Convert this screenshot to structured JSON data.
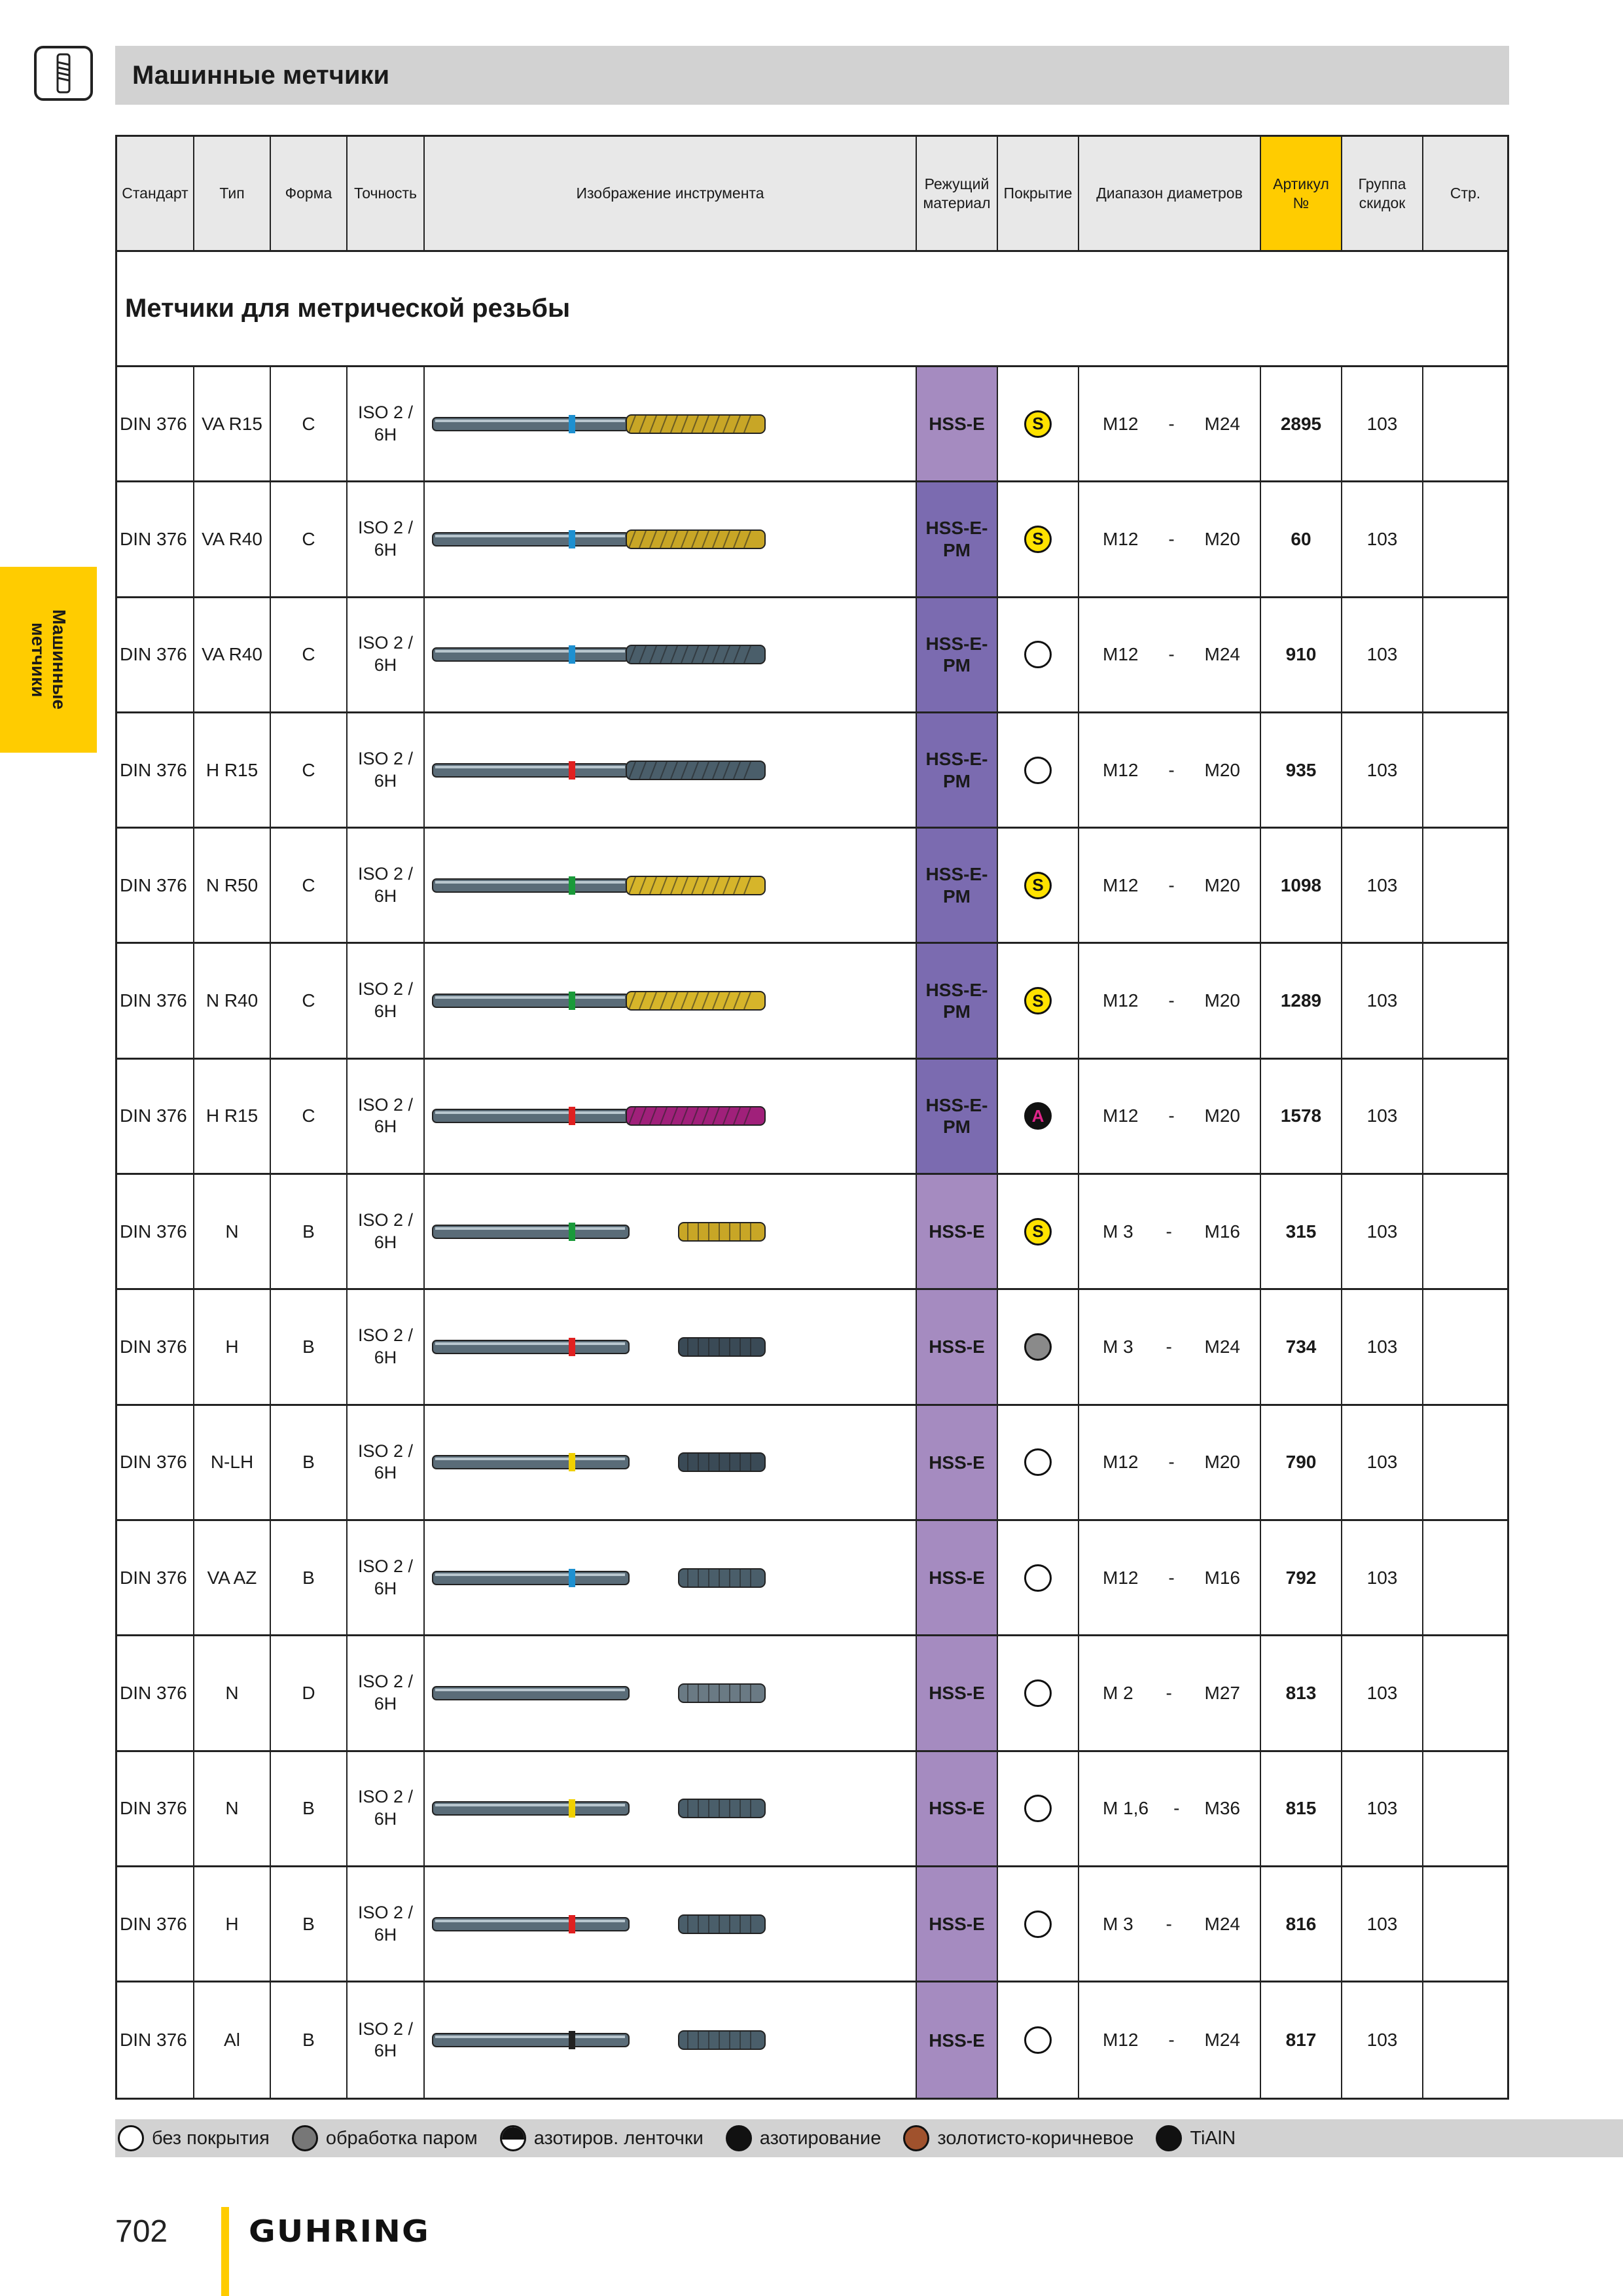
{
  "header": {
    "title": "Машинные метчики"
  },
  "side_tab": {
    "label": "Машинные\nметчики"
  },
  "table": {
    "headers": {
      "standard": "Стандарт",
      "type": "Тип",
      "form": "Форма",
      "tolerance": "Точность",
      "image": "Изображение инструмента",
      "material": "Режущий материал",
      "coating": "Покрытие",
      "range": "Диапазон диаметров",
      "article": "Артикул №",
      "discount": "Группа скидок",
      "page": "Стр."
    },
    "section_title": "Метчики для метрической резьбы",
    "rows": [
      {
        "standard": "DIN 376",
        "type": "VA R15",
        "form": "C",
        "tolerance": "ISO 2 / 6H",
        "material": "HSS-E",
        "coating": "S",
        "coating_kind": "s",
        "range_from": "M12",
        "dash": "-",
        "range_to": "M24",
        "article": "2895",
        "discount": "103",
        "page": "",
        "ring": "#1e90d0",
        "body": "#c8a626",
        "flute": "spiral"
      },
      {
        "standard": "DIN 376",
        "type": "VA R40",
        "form": "C",
        "tolerance": "ISO 2 / 6H",
        "material": "HSS-E-PM",
        "coating": "S",
        "coating_kind": "s",
        "range_from": "M12",
        "dash": "-",
        "range_to": "M20",
        "article": "60",
        "discount": "103",
        "page": "",
        "ring": "#1e90d0",
        "body": "#c8a626",
        "flute": "spiral"
      },
      {
        "standard": "DIN 376",
        "type": "VA R40",
        "form": "C",
        "tolerance": "ISO 2 / 6H",
        "material": "HSS-E-PM",
        "coating": "",
        "coating_kind": "none",
        "range_from": "M12",
        "dash": "-",
        "range_to": "M24",
        "article": "910",
        "discount": "103",
        "page": "",
        "ring": "#1e90d0",
        "body": "#4a5e6a",
        "flute": "spiral"
      },
      {
        "standard": "DIN 376",
        "type": "H R15",
        "form": "C",
        "tolerance": "ISO 2 / 6H",
        "material": "HSS-E-PM",
        "coating": "",
        "coating_kind": "none",
        "range_from": "M12",
        "dash": "-",
        "range_to": "M20",
        "article": "935",
        "discount": "103",
        "page": "",
        "ring": "#e02020",
        "body": "#4a5e6a",
        "flute": "spiral"
      },
      {
        "standard": "DIN 376",
        "type": "N R50",
        "form": "C",
        "tolerance": "ISO 2 / 6H",
        "material": "HSS-E-PM",
        "coating": "S",
        "coating_kind": "s",
        "range_from": "M12",
        "dash": "-",
        "range_to": "M20",
        "article": "1098",
        "discount": "103",
        "page": "",
        "ring": "#1a9a3a",
        "body": "#d6b52a",
        "flute": "spiral"
      },
      {
        "standard": "DIN 376",
        "type": "N R40",
        "form": "C",
        "tolerance": "ISO 2 / 6H",
        "material": "HSS-E-PM",
        "coating": "S",
        "coating_kind": "s",
        "range_from": "M12",
        "dash": "-",
        "range_to": "M20",
        "article": "1289",
        "discount": "103",
        "page": "",
        "ring": "#1a9a3a",
        "body": "#d6b52a",
        "flute": "spiral"
      },
      {
        "standard": "DIN 376",
        "type": "H R15",
        "form": "C",
        "tolerance": "ISO 2 / 6H",
        "material": "HSS-E-PM",
        "coating": "A",
        "coating_kind": "a",
        "range_from": "M12",
        "dash": "-",
        "range_to": "M20",
        "article": "1578",
        "discount": "103",
        "page": "",
        "ring": "#e02020",
        "body": "#a0207a",
        "flute": "spiral"
      },
      {
        "standard": "DIN 376",
        "type": "N",
        "form": "B",
        "tolerance": "ISO 2 / 6H",
        "material": "HSS-E",
        "coating": "S",
        "coating_kind": "s",
        "range_from": "M 3",
        "dash": "-",
        "range_to": "M16",
        "article": "315",
        "discount": "103",
        "page": "",
        "ring": "#1a9a3a",
        "body": "#c8a626",
        "flute": "straight"
      },
      {
        "standard": "DIN 376",
        "type": "H",
        "form": "B",
        "tolerance": "ISO 2 / 6H",
        "material": "HSS-E",
        "coating": "",
        "coating_kind": "steam",
        "range_from": "M 3",
        "dash": "-",
        "range_to": "M24",
        "article": "734",
        "discount": "103",
        "page": "",
        "ring": "#e02020",
        "body": "#3a4a56",
        "flute": "straight"
      },
      {
        "standard": "DIN 376",
        "type": "N-LH",
        "form": "B",
        "tolerance": "ISO 2 / 6H",
        "material": "HSS-E",
        "coating": "",
        "coating_kind": "none",
        "range_from": "M12",
        "dash": "-",
        "range_to": "M20",
        "article": "790",
        "discount": "103",
        "page": "",
        "ring": "#f0d000",
        "body": "#3a4a56",
        "flute": "straight"
      },
      {
        "standard": "DIN 376",
        "type": "VA AZ",
        "form": "B",
        "tolerance": "ISO 2 / 6H",
        "material": "HSS-E",
        "coating": "",
        "coating_kind": "none",
        "range_from": "M12",
        "dash": "-",
        "range_to": "M16",
        "article": "792",
        "discount": "103",
        "page": "",
        "ring": "#1e90d0",
        "body": "#4a5e6a",
        "flute": "straight"
      },
      {
        "standard": "DIN 376",
        "type": "N",
        "form": "D",
        "tolerance": "ISO 2 / 6H",
        "material": "HSS-E",
        "coating": "",
        "coating_kind": "none",
        "range_from": "M 2",
        "dash": "-",
        "range_to": "M27",
        "article": "813",
        "discount": "103",
        "page": "",
        "ring": "",
        "body": "#6a7a84",
        "flute": "straight"
      },
      {
        "standard": "DIN 376",
        "type": "N",
        "form": "B",
        "tolerance": "ISO 2 / 6H",
        "material": "HSS-E",
        "coating": "",
        "coating_kind": "none",
        "range_from": "M 1,6",
        "dash": "-",
        "range_to": "M36",
        "article": "815",
        "discount": "103",
        "page": "",
        "ring": "#f0d000",
        "body": "#4a5e6a",
        "flute": "straight"
      },
      {
        "standard": "DIN 376",
        "type": "H",
        "form": "B",
        "tolerance": "ISO 2 / 6H",
        "material": "HSS-E",
        "coating": "",
        "coating_kind": "none",
        "range_from": "M 3",
        "dash": "-",
        "range_to": "M24",
        "article": "816",
        "discount": "103",
        "page": "",
        "ring": "#e02020",
        "body": "#4a5e6a",
        "flute": "straight"
      },
      {
        "standard": "DIN 376",
        "type": "Al",
        "form": "B",
        "tolerance": "ISO 2 / 6H",
        "material": "HSS-E",
        "coating": "",
        "coating_kind": "none",
        "range_from": "M12",
        "dash": "-",
        "range_to": "M24",
        "article": "817",
        "discount": "103",
        "page": "",
        "ring": "#222222",
        "body": "#4a5e6a",
        "flute": "straight"
      }
    ]
  },
  "legend": [
    {
      "label": "без покрытия",
      "kind": "none"
    },
    {
      "label": "обработка паром",
      "kind": "steam"
    },
    {
      "label": "азотиров. ленточки",
      "kind": "tape"
    },
    {
      "label": "азотирование",
      "kind": "nitr"
    },
    {
      "label": "золотисто-коричневое",
      "kind": "gold"
    },
    {
      "label": "TiAlN",
      "kind": "tialn"
    }
  ],
  "footer": {
    "page_number": "702",
    "brand": "GUHRING"
  },
  "colors": {
    "accent": "#ffcc00",
    "header_gray": "#d2d2d2",
    "mat_hss_e": "#a58bc0",
    "mat_hss_e_pm": "#7b6bb0"
  }
}
